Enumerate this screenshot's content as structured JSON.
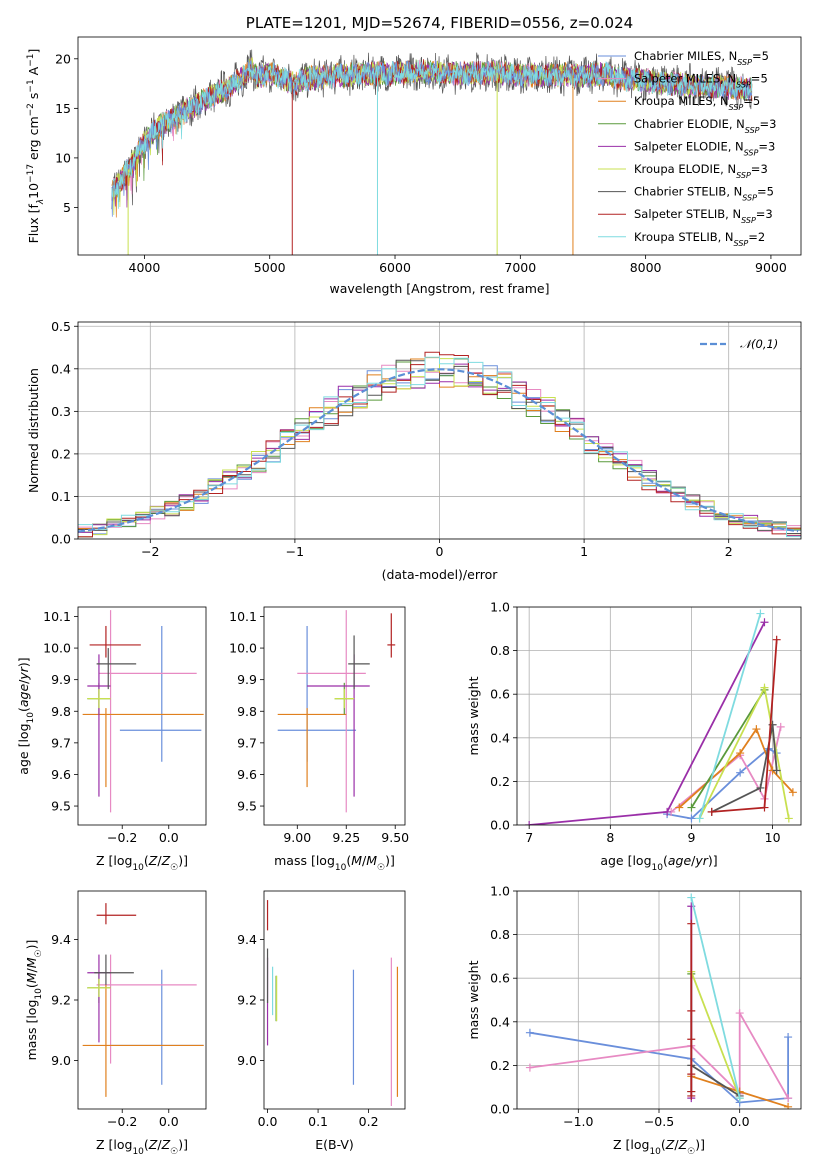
{
  "colors": {
    "Chabrier MILES": "#6a8fdb",
    "Salpeter MILES": "#e78ac3",
    "Kroupa MILES": "#e0801e",
    "Chabrier ELODIE": "#5a9a3c",
    "Salpeter ELODIE": "#9a2fa8",
    "Kroupa ELODIE": "#c8e050",
    "Chabrier STELIB": "#555555",
    "Salpeter STELIB": "#b22222",
    "Kroupa STELIB": "#7fdbe0",
    "normal": "#5b8fd6"
  },
  "chart_data": [
    {
      "id": "spectrum",
      "type": "line",
      "title": "PLATE=1201, MJD=52674, FIBERID=0556, z=0.024",
      "xlabel": "wavelength [Angstrom, rest frame]",
      "ylabel_parts": [
        "Flux [f",
        "λ",
        "10",
        "−17",
        " erg cm",
        "−2",
        " s",
        "−1",
        " A",
        "−1",
        "]"
      ],
      "xlim": [
        3470,
        9240
      ],
      "ylim": [
        0.2,
        22.2
      ],
      "xticks": [
        4000,
        5000,
        6000,
        7000,
        8000,
        9000
      ],
      "yticks": [
        5,
        10,
        15,
        20
      ],
      "continuum_x": [
        3700,
        3800,
        3900,
        4000,
        4100,
        4200,
        4300,
        4500,
        4700,
        4800,
        4850,
        4900,
        5000,
        5100,
        5200,
        5300,
        5500,
        5800,
        6000,
        6200,
        6500,
        6800,
        7000,
        7200,
        7500,
        7700,
        7800,
        8000,
        8200,
        8400,
        8600,
        8800
      ],
      "continuum_y": [
        6,
        7.5,
        9.5,
        11.5,
        13,
        13.8,
        14.5,
        16,
        17.3,
        18.3,
        19.2,
        18,
        18.6,
        18,
        17.5,
        18,
        18.3,
        18.5,
        18.5,
        18.7,
        18.5,
        18.6,
        18.3,
        18.4,
        18.3,
        18.5,
        18,
        17.8,
        17.5,
        17.3,
        17.2,
        17
      ],
      "legend": [
        {
          "label": "Chabrier MILES, N",
          "n": "5"
        },
        {
          "label": "Salpeter MILES, N",
          "n": "5"
        },
        {
          "label": "Kroupa MILES, N",
          "n": "5"
        },
        {
          "label": "Chabrier ELODIE, N",
          "n": "3"
        },
        {
          "label": "Salpeter ELODIE, N",
          "n": "3"
        },
        {
          "label": "Kroupa ELODIE, N",
          "n": "3"
        },
        {
          "label": "Chabrier STELIB, N",
          "n": "5"
        },
        {
          "label": "Salpeter STELIB, N",
          "n": "3"
        },
        {
          "label": "Kroupa STELIB, N",
          "n": "2"
        }
      ],
      "legend_sub": "SSP",
      "legend_placement": "top-right"
    },
    {
      "id": "residuals",
      "type": "histogram",
      "xlabel": "(data-model)/error",
      "ylabel": "Normed distribution",
      "xlim": [
        -2.5,
        2.5
      ],
      "ylim": [
        0,
        0.51
      ],
      "xticks": [
        -2,
        -1,
        0,
        1,
        2
      ],
      "xticklabels": [
        "−2",
        "−1",
        "0",
        "1",
        "2"
      ],
      "yticks": [
        0,
        0.1,
        0.2,
        0.3,
        0.4,
        0.5
      ],
      "yticklabels": [
        "0.0",
        "0.1",
        "0.2",
        "0.3",
        "0.4",
        "0.5"
      ],
      "grid": true,
      "bin_width": 0.1,
      "legend": "𝒩(0,1)",
      "legend_placement": "top-right"
    },
    {
      "id": "age-vs-Z",
      "type": "errorbar",
      "xlabel": "Z [log10(Z/Z☉)]",
      "ylabel": "age  [log10(age/yr)]",
      "xlim": [
        -0.39,
        0.16
      ],
      "ylim": [
        9.44,
        10.13
      ],
      "xticks": [
        -0.2,
        0.0
      ],
      "xticklabels": [
        "−0.2",
        "0.0"
      ],
      "yticks": [
        9.5,
        9.6,
        9.7,
        9.8,
        9.9,
        10.0,
        10.1
      ],
      "yticklabels": [
        "9.5",
        "9.6",
        "9.7",
        "9.8",
        "9.9",
        "10.0",
        "10.1"
      ],
      "points": [
        {
          "model": "Chabrier MILES",
          "x": -0.03,
          "xerr": [
            0.18,
            0.17
          ],
          "y": 9.74,
          "yerr": [
            0.1,
            0.33
          ]
        },
        {
          "model": "Salpeter MILES",
          "x": -0.25,
          "xerr": [
            0.05,
            0.37
          ],
          "y": 9.92,
          "yerr": [
            0.44,
            0.2
          ]
        },
        {
          "model": "Kroupa MILES",
          "x": -0.27,
          "xerr": [
            0.1,
            0.42
          ],
          "y": 9.79,
          "yerr": [
            0.23,
            0.02
          ]
        },
        {
          "model": "Chabrier ELODIE",
          "x": -0.3,
          "xerr": [
            0.05,
            0.05
          ],
          "y": 9.84,
          "yerr": [
            0.05,
            0.05
          ]
        },
        {
          "model": "Salpeter ELODIE",
          "x": -0.3,
          "xerr": [
            0.05,
            0.05
          ],
          "y": 9.88,
          "yerr": [
            0.35,
            0.1
          ]
        },
        {
          "model": "Kroupa ELODIE",
          "x": -0.3,
          "xerr": [
            0.05,
            0.05
          ],
          "y": 9.84,
          "yerr": [
            0.03,
            0.03
          ]
        },
        {
          "model": "Chabrier STELIB",
          "x": -0.26,
          "xerr": [
            0.05,
            0.12
          ],
          "y": 9.95,
          "yerr": [
            0.08,
            0.05
          ]
        },
        {
          "model": "Salpeter STELIB",
          "x": -0.27,
          "xerr": [
            0.07,
            0.15
          ],
          "y": 10.01,
          "yerr": [
            0.04,
            0.06
          ]
        }
      ]
    },
    {
      "id": "age-vs-mass",
      "type": "errorbar",
      "xlabel": "mass [log10(M/M☉)]",
      "ylabel": "",
      "xlim": [
        8.83,
        9.55
      ],
      "ylim": [
        9.44,
        10.13
      ],
      "xticks": [
        9.0,
        9.25,
        9.5
      ],
      "xticklabels": [
        "9.00",
        "9.25",
        "9.50"
      ],
      "yticks": [
        9.5,
        9.6,
        9.7,
        9.8,
        9.9,
        10.0,
        10.1
      ],
      "yticklabels": [
        "9.5",
        "9.6",
        "9.7",
        "9.8",
        "9.9",
        "10.0",
        "10.1"
      ],
      "points": [
        {
          "model": "Chabrier MILES",
          "x": 9.05,
          "xerr": [
            0.15,
            0.25
          ],
          "y": 9.74,
          "yerr": [
            0.1,
            0.33
          ]
        },
        {
          "model": "Salpeter MILES",
          "x": 9.25,
          "xerr": [
            0.25,
            0.1
          ],
          "y": 9.92,
          "yerr": [
            0.44,
            0.2
          ]
        },
        {
          "model": "Kroupa MILES",
          "x": 9.05,
          "xerr": [
            0.15,
            0.2
          ],
          "y": 9.79,
          "yerr": [
            0.23,
            0.02
          ]
        },
        {
          "model": "Chabrier ELODIE",
          "x": 9.24,
          "xerr": [
            0.05,
            0.05
          ],
          "y": 9.84,
          "yerr": [
            0.05,
            0.05
          ]
        },
        {
          "model": "Salpeter ELODIE",
          "x": 9.29,
          "xerr": [
            0.24,
            0.08
          ],
          "y": 9.88,
          "yerr": [
            0.35,
            0.1
          ]
        },
        {
          "model": "Kroupa ELODIE",
          "x": 9.24,
          "xerr": [
            0.05,
            0.05
          ],
          "y": 9.84,
          "yerr": [
            0.03,
            0.03
          ]
        },
        {
          "model": "Chabrier STELIB",
          "x": 9.29,
          "xerr": [
            0.03,
            0.08
          ],
          "y": 9.95,
          "yerr": [
            0.08,
            0.09
          ]
        },
        {
          "model": "Salpeter STELIB",
          "x": 9.48,
          "xerr": [
            0.02,
            0.02
          ],
          "y": 10.01,
          "yerr": [
            0.04,
            0.1
          ]
        }
      ]
    },
    {
      "id": "mass-weight-vs-age",
      "type": "line",
      "xlabel": "age  [log10(age/yr)]",
      "ylabel": "mass weight",
      "xlim": [
        6.85,
        10.35
      ],
      "ylim": [
        0,
        1
      ],
      "xticks": [
        7,
        8,
        9,
        10
      ],
      "xticklabels": [
        "7",
        "8",
        "9",
        "10"
      ],
      "yticks": [
        0,
        0.2,
        0.4,
        0.6,
        0.8,
        1.0
      ],
      "yticklabels": [
        "0.0",
        "0.2",
        "0.4",
        "0.6",
        "0.8",
        "1.0"
      ],
      "grid": true,
      "series": [
        {
          "model": "Chabrier MILES",
          "x": [
            8.7,
            9.0,
            9.6,
            9.95,
            10.05
          ],
          "y": [
            0.05,
            0.03,
            0.24,
            0.35,
            0.33
          ]
        },
        {
          "model": "Salpeter MILES",
          "x": [
            8.75,
            9.6,
            9.9,
            10.1
          ],
          "y": [
            0.06,
            0.32,
            0.12,
            0.45
          ]
        },
        {
          "model": "Kroupa MILES",
          "x": [
            8.85,
            9.6,
            9.8,
            10.0,
            10.25
          ],
          "y": [
            0.08,
            0.33,
            0.44,
            0.25,
            0.15
          ]
        },
        {
          "model": "Chabrier ELODIE",
          "x": [
            9.0,
            9.9
          ],
          "y": [
            0.08,
            0.62
          ]
        },
        {
          "model": "Salpeter ELODIE",
          "x": [
            7.0,
            8.7,
            9.9
          ],
          "y": [
            0.0,
            0.06,
            0.93
          ]
        },
        {
          "model": "Kroupa ELODIE",
          "x": [
            9.1,
            9.9,
            10.2
          ],
          "y": [
            0.03,
            0.63,
            0.03
          ]
        },
        {
          "model": "Chabrier STELIB",
          "x": [
            9.25,
            9.85,
            10.0,
            10.05
          ],
          "y": [
            0.06,
            0.17,
            0.46,
            0.25
          ]
        },
        {
          "model": "Salpeter STELIB",
          "x": [
            9.25,
            9.9,
            10.05
          ],
          "y": [
            0.06,
            0.08,
            0.85
          ]
        },
        {
          "model": "Kroupa STELIB",
          "x": [
            9.1,
            9.85
          ],
          "y": [
            0.03,
            0.97
          ]
        }
      ]
    },
    {
      "id": "mass-vs-Z",
      "type": "errorbar",
      "xlabel": "Z [log10(Z/Z☉)]",
      "ylabel": "mass [log10(M/M☉)]",
      "xlim": [
        -0.39,
        0.16
      ],
      "ylim": [
        8.84,
        9.56
      ],
      "xticks": [
        -0.2,
        0.0
      ],
      "xticklabels": [
        "−0.2",
        "0.0"
      ],
      "yticks": [
        9.0,
        9.2,
        9.4
      ],
      "yticklabels": [
        "9.0",
        "9.2",
        "9.4"
      ],
      "points": [
        {
          "model": "Chabrier MILES",
          "x": -0.03,
          "xerr": [
            0.22,
            0.18
          ],
          "y": 9.05,
          "yerr": [
            0.13,
            0.25
          ]
        },
        {
          "model": "Salpeter MILES",
          "x": -0.25,
          "xerr": [
            0.06,
            0.37
          ],
          "y": 9.25,
          "yerr": [
            0.26,
            0.1
          ]
        },
        {
          "model": "Kroupa MILES",
          "x": -0.27,
          "xerr": [
            0.1,
            0.42
          ],
          "y": 9.05,
          "yerr": [
            0.17,
            0.2
          ]
        },
        {
          "model": "Chabrier ELODIE",
          "x": -0.3,
          "xerr": [
            0.05,
            0.05
          ],
          "y": 9.24,
          "yerr": [
            0.05,
            0.05
          ]
        },
        {
          "model": "Salpeter ELODIE",
          "x": -0.3,
          "xerr": [
            0.05,
            0.05
          ],
          "y": 9.29,
          "yerr": [
            0.23,
            0.06
          ]
        },
        {
          "model": "Kroupa ELODIE",
          "x": -0.3,
          "xerr": [
            0.05,
            0.05
          ],
          "y": 9.24,
          "yerr": [
            0.03,
            0.03
          ]
        },
        {
          "model": "Chabrier STELIB",
          "x": -0.27,
          "xerr": [
            0.05,
            0.12
          ],
          "y": 9.29,
          "yerr": [
            0.04,
            0.06
          ]
        },
        {
          "model": "Salpeter STELIB",
          "x": -0.27,
          "xerr": [
            0.04,
            0.13
          ],
          "y": 9.48,
          "yerr": [
            0.03,
            0.04
          ]
        }
      ]
    },
    {
      "id": "mass-vs-EBV",
      "type": "errorbar",
      "xlabel": "E(B-V)",
      "ylabel": "",
      "xlim": [
        -0.007,
        0.272
      ],
      "ylim": [
        8.84,
        9.56
      ],
      "xticks": [
        0,
        0.1,
        0.2
      ],
      "xticklabels": [
        "0.0",
        "0.1",
        "0.2"
      ],
      "yticks": [
        9.0,
        9.2,
        9.4
      ],
      "yticklabels": [
        "9.0",
        "9.2",
        "9.4"
      ],
      "points": [
        {
          "model": "Chabrier MILES",
          "x": 0.17,
          "xerr": [
            0,
            0
          ],
          "y": 9.1,
          "yerr": [
            0.18,
            0.2
          ]
        },
        {
          "model": "Salpeter MILES",
          "x": 0.245,
          "xerr": [
            0,
            0
          ],
          "y": 9.15,
          "yerr": [
            0.3,
            0.19
          ]
        },
        {
          "model": "Kroupa MILES",
          "x": 0.257,
          "xerr": [
            0,
            0
          ],
          "y": 9.1,
          "yerr": [
            0.22,
            0.21
          ]
        },
        {
          "model": "Chabrier ELODIE",
          "x": 0.017,
          "xerr": [
            0,
            0
          ],
          "y": 9.2,
          "yerr": [
            0.07,
            0.08
          ]
        },
        {
          "model": "Salpeter ELODIE",
          "x": 0.0,
          "xerr": [
            0,
            0
          ],
          "y": 9.2,
          "yerr": [
            0.15,
            0.14
          ]
        },
        {
          "model": "Kroupa ELODIE",
          "x": 0.018,
          "xerr": [
            0,
            0
          ],
          "y": 9.2,
          "yerr": [
            0.07,
            0.08
          ]
        },
        {
          "model": "Chabrier STELIB",
          "x": 0.0,
          "xerr": [
            0,
            0
          ],
          "y": 9.31,
          "yerr": [
            0.12,
            0.06
          ]
        },
        {
          "model": "Salpeter STELIB",
          "x": 0.0,
          "xerr": [
            0,
            0
          ],
          "y": 9.47,
          "yerr": [
            0.04,
            0.06
          ]
        },
        {
          "model": "Kroupa STELIB",
          "x": 0.01,
          "xerr": [
            0,
            0
          ],
          "y": 9.23,
          "yerr": [
            0.08,
            0.08
          ]
        }
      ]
    },
    {
      "id": "mass-weight-vs-Z",
      "type": "line",
      "xlabel": "Z [log10(Z/Z☉)]",
      "ylabel": "mass weight",
      "xlim": [
        -1.38,
        0.38
      ],
      "ylim": [
        0,
        1
      ],
      "xticks": [
        -1.0,
        -0.5,
        0.0
      ],
      "xticklabels": [
        "−1.0",
        "−0.5",
        "0.0"
      ],
      "yticks": [
        0,
        0.2,
        0.4,
        0.6,
        0.8,
        1.0
      ],
      "yticklabels": [
        "0.0",
        "0.2",
        "0.4",
        "0.6",
        "0.8",
        "1.0"
      ],
      "grid": true,
      "series": [
        {
          "model": "Chabrier MILES",
          "x": [
            -1.3,
            -0.3,
            0.0,
            0.3,
            0.3
          ],
          "y": [
            0.35,
            0.23,
            0.03,
            0.05,
            0.33
          ]
        },
        {
          "model": "Salpeter MILES",
          "x": [
            -1.3,
            -0.3,
            0.0,
            0.0,
            0.3
          ],
          "y": [
            0.19,
            0.29,
            0.07,
            0.44,
            0.05
          ]
        },
        {
          "model": "Kroupa MILES",
          "x": [
            -0.3,
            0.0,
            0.3
          ],
          "y": [
            0.15,
            0.08,
            0.01
          ]
        },
        {
          "model": "Chabrier ELODIE",
          "x": [
            -0.3,
            -0.3
          ],
          "y": [
            0.08,
            0.62
          ]
        },
        {
          "model": "Salpeter ELODIE",
          "x": [
            -0.3,
            -0.3
          ],
          "y": [
            0.05,
            0.93
          ]
        },
        {
          "model": "Kroupa ELODIE",
          "x": [
            -0.3,
            0.0
          ],
          "y": [
            0.63,
            0.05
          ]
        },
        {
          "model": "Chabrier STELIB",
          "x": [
            -0.3,
            0.0
          ],
          "y": [
            0.2,
            0.06
          ]
        },
        {
          "model": "Salpeter STELIB",
          "x": [
            -0.3,
            -0.3,
            -0.3,
            -0.3,
            -0.3,
            -0.3
          ],
          "y": [
            0.06,
            0.16,
            0.45,
            0.85,
            0.32,
            0.08
          ]
        },
        {
          "model": "Kroupa STELIB",
          "x": [
            -0.3,
            0.0
          ],
          "y": [
            0.97,
            0.05
          ]
        }
      ]
    }
  ]
}
